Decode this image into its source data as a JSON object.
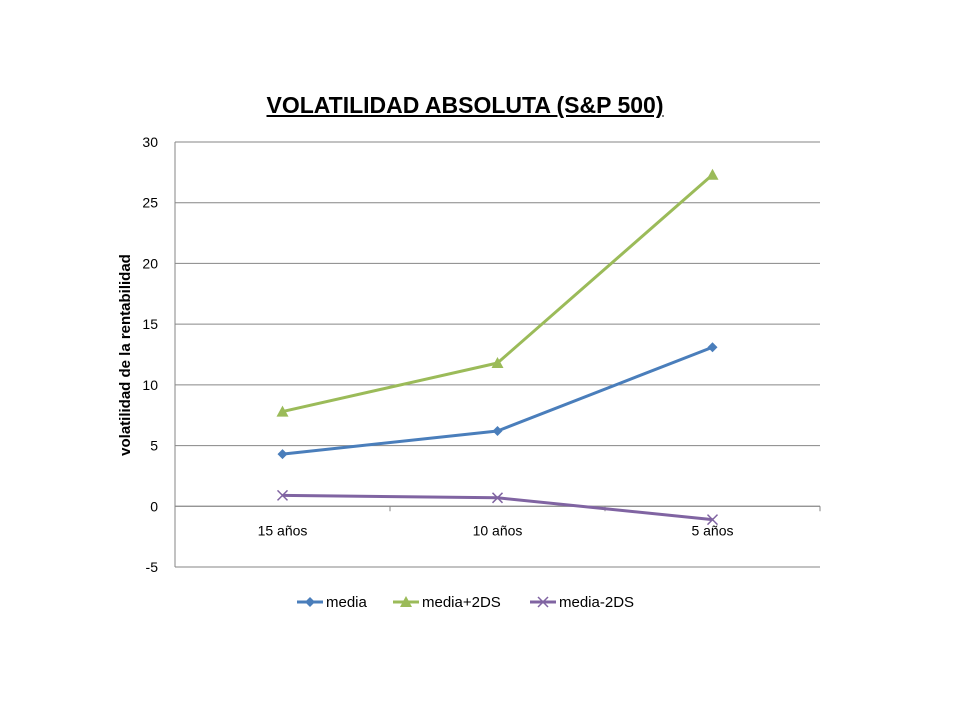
{
  "chart_data": {
    "type": "line",
    "title": "VOLATILIDAD ABSOLUTA (S&P 500)",
    "xlabel": "",
    "ylabel": "volatilidad de la rentabilidad",
    "categories": [
      "15 años",
      "10 años",
      "5 años"
    ],
    "ylim": [
      -5,
      30
    ],
    "yticks": [
      -5,
      0,
      5,
      10,
      15,
      20,
      25,
      30
    ],
    "grid": true,
    "legend": "bottom",
    "series": [
      {
        "name": "media",
        "values": [
          4.3,
          6.2,
          13.1
        ],
        "color": "#4a7ebb",
        "marker": "diamond"
      },
      {
        "name": "media+2DS",
        "values": [
          7.8,
          11.8,
          27.3
        ],
        "color": "#9bbb59",
        "marker": "triangle"
      },
      {
        "name": "media-2DS",
        "values": [
          0.9,
          0.7,
          -1.1
        ],
        "color": "#8064a2",
        "marker": "x"
      }
    ]
  }
}
